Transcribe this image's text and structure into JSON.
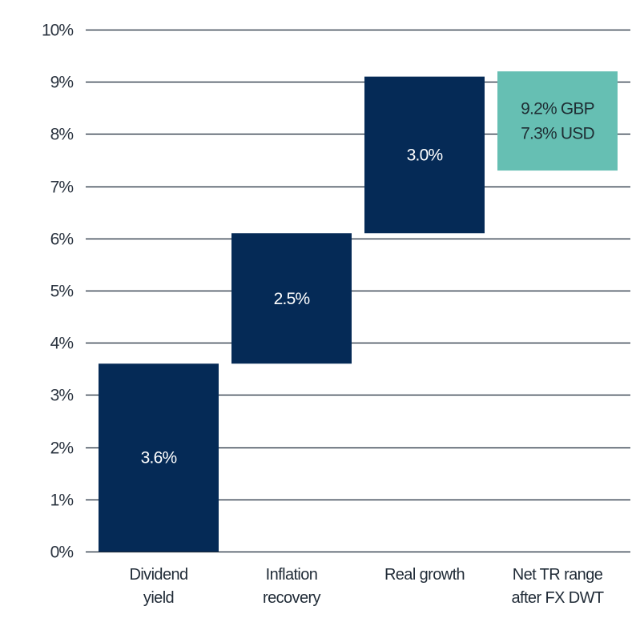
{
  "chart_data": {
    "type": "bar",
    "subtype": "waterfall",
    "title": "",
    "xlabel": "",
    "ylabel": "",
    "ylim": [
      0,
      10
    ],
    "y_ticks": [
      0,
      1,
      2,
      3,
      4,
      5,
      6,
      7,
      8,
      9,
      10
    ],
    "y_tick_labels": [
      "0%",
      "1%",
      "2%",
      "3%",
      "4%",
      "5%",
      "6%",
      "7%",
      "8%",
      "9%",
      "10%"
    ],
    "grid": true,
    "legend": "none",
    "categories": [
      [
        "Dividend",
        "yield"
      ],
      [
        "Inflation",
        "recovery"
      ],
      [
        "Real growth"
      ],
      [
        "Net TR range",
        "after FX DWT"
      ]
    ],
    "bars": [
      {
        "category": "Dividend yield",
        "start": 0,
        "end": 3.6,
        "value": 3.6,
        "label": [
          "3.6%"
        ],
        "color": "#052a56"
      },
      {
        "category": "Inflation recovery",
        "start": 3.6,
        "end": 6.1,
        "value": 2.5,
        "label": [
          "2.5%"
        ],
        "color": "#052a56"
      },
      {
        "category": "Real growth",
        "start": 6.1,
        "end": 9.1,
        "value": 3.0,
        "label": [
          "3.0%"
        ],
        "color": "#052a56"
      },
      {
        "category": "Net TR range after FX DWT",
        "start": 7.3,
        "end": 9.2,
        "value": null,
        "label": [
          "9.2% GBP",
          "7.3% USD"
        ],
        "color": "#66bfb3"
      }
    ],
    "colors": {
      "bar": "#052a56",
      "range": "#66bfb3",
      "gridline": "#1b2838"
    }
  }
}
